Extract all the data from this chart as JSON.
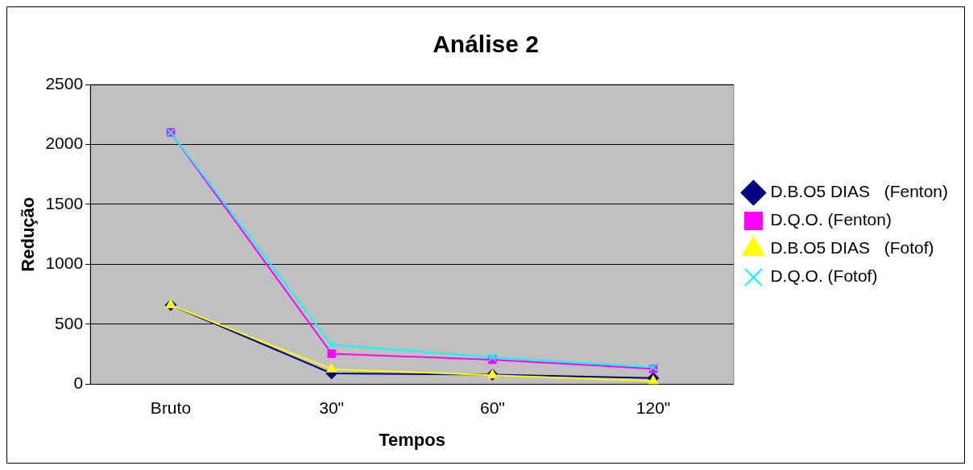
{
  "chart_data": {
    "type": "line",
    "title": "Análise 2",
    "xlabel": "Tempos",
    "ylabel": "Redução",
    "categories": [
      "Bruto",
      "30\"",
      "60\"",
      "120\""
    ],
    "series": [
      {
        "name": "D.B.O5 DIAS   (Fenton)",
        "color": "#000080",
        "marker": "diamond",
        "values": [
          660,
          90,
          80,
          51
        ]
      },
      {
        "name": "D.Q.O. (Fenton)",
        "color": "#ff00ff",
        "marker": "square",
        "values": [
          2100,
          255,
          204,
          129
        ]
      },
      {
        "name": "D.B.O5 DIAS   (Fotof)",
        "color": "#ffff00",
        "marker": "triangle",
        "values": [
          660,
          126,
          75,
          27
        ]
      },
      {
        "name": "D.Q.O. (Fotof)",
        "color": "#00ffff",
        "marker": "cross",
        "values": [
          2100,
          330,
          225,
          141
        ]
      }
    ],
    "ylim": [
      0,
      2500
    ],
    "yticks": [
      0,
      500,
      1000,
      1500,
      2000,
      2500
    ],
    "grid": "y",
    "legend": "right"
  }
}
